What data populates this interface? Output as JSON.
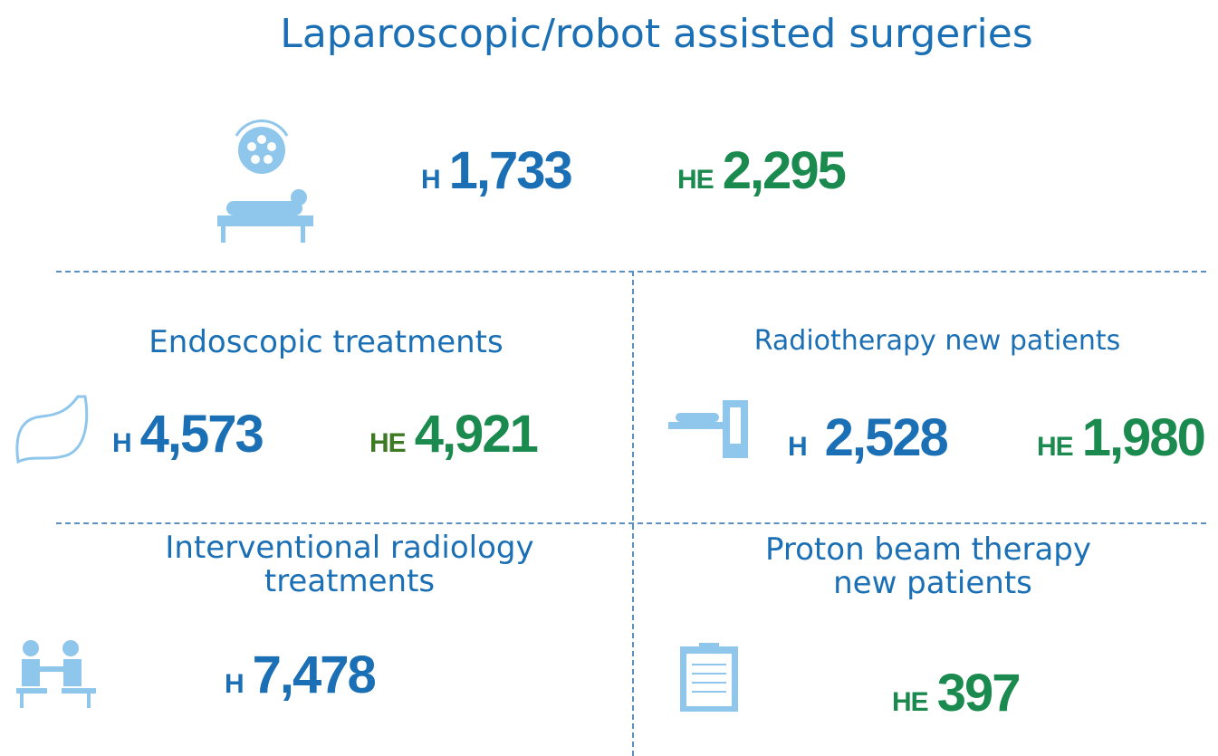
{
  "title": "Laparoscopic/robot assisted surgeries",
  "sections": [
    {
      "title_lines": [
        "Laparoscopic/robot assisted surgeries"
      ],
      "stats": [
        {
          "prefix": "H",
          "value": "1,733"
        },
        {
          "prefix": "HE",
          "value": "2,295"
        }
      ]
    },
    {
      "title_lines": [
        "Endoscopic treatments"
      ],
      "stats": [
        {
          "prefix": "H",
          "value": "4,573"
        },
        {
          "prefix": "HE",
          "value": "4,921"
        }
      ]
    },
    {
      "title_lines": [
        "Radiotherapy new patients"
      ],
      "stats": [
        {
          "prefix": "H",
          "value": "2,528"
        },
        {
          "prefix": "HE",
          "value": "1,980"
        }
      ]
    },
    {
      "title_lines": [
        "Interventional radiology",
        "treatments"
      ],
      "stats": [
        {
          "prefix": "H",
          "value": "7,478"
        }
      ]
    },
    {
      "title_lines": [
        "Proton beam therapy",
        "new patients"
      ],
      "stats": [
        {
          "prefix": "HE",
          "value": "397"
        }
      ]
    }
  ]
}
